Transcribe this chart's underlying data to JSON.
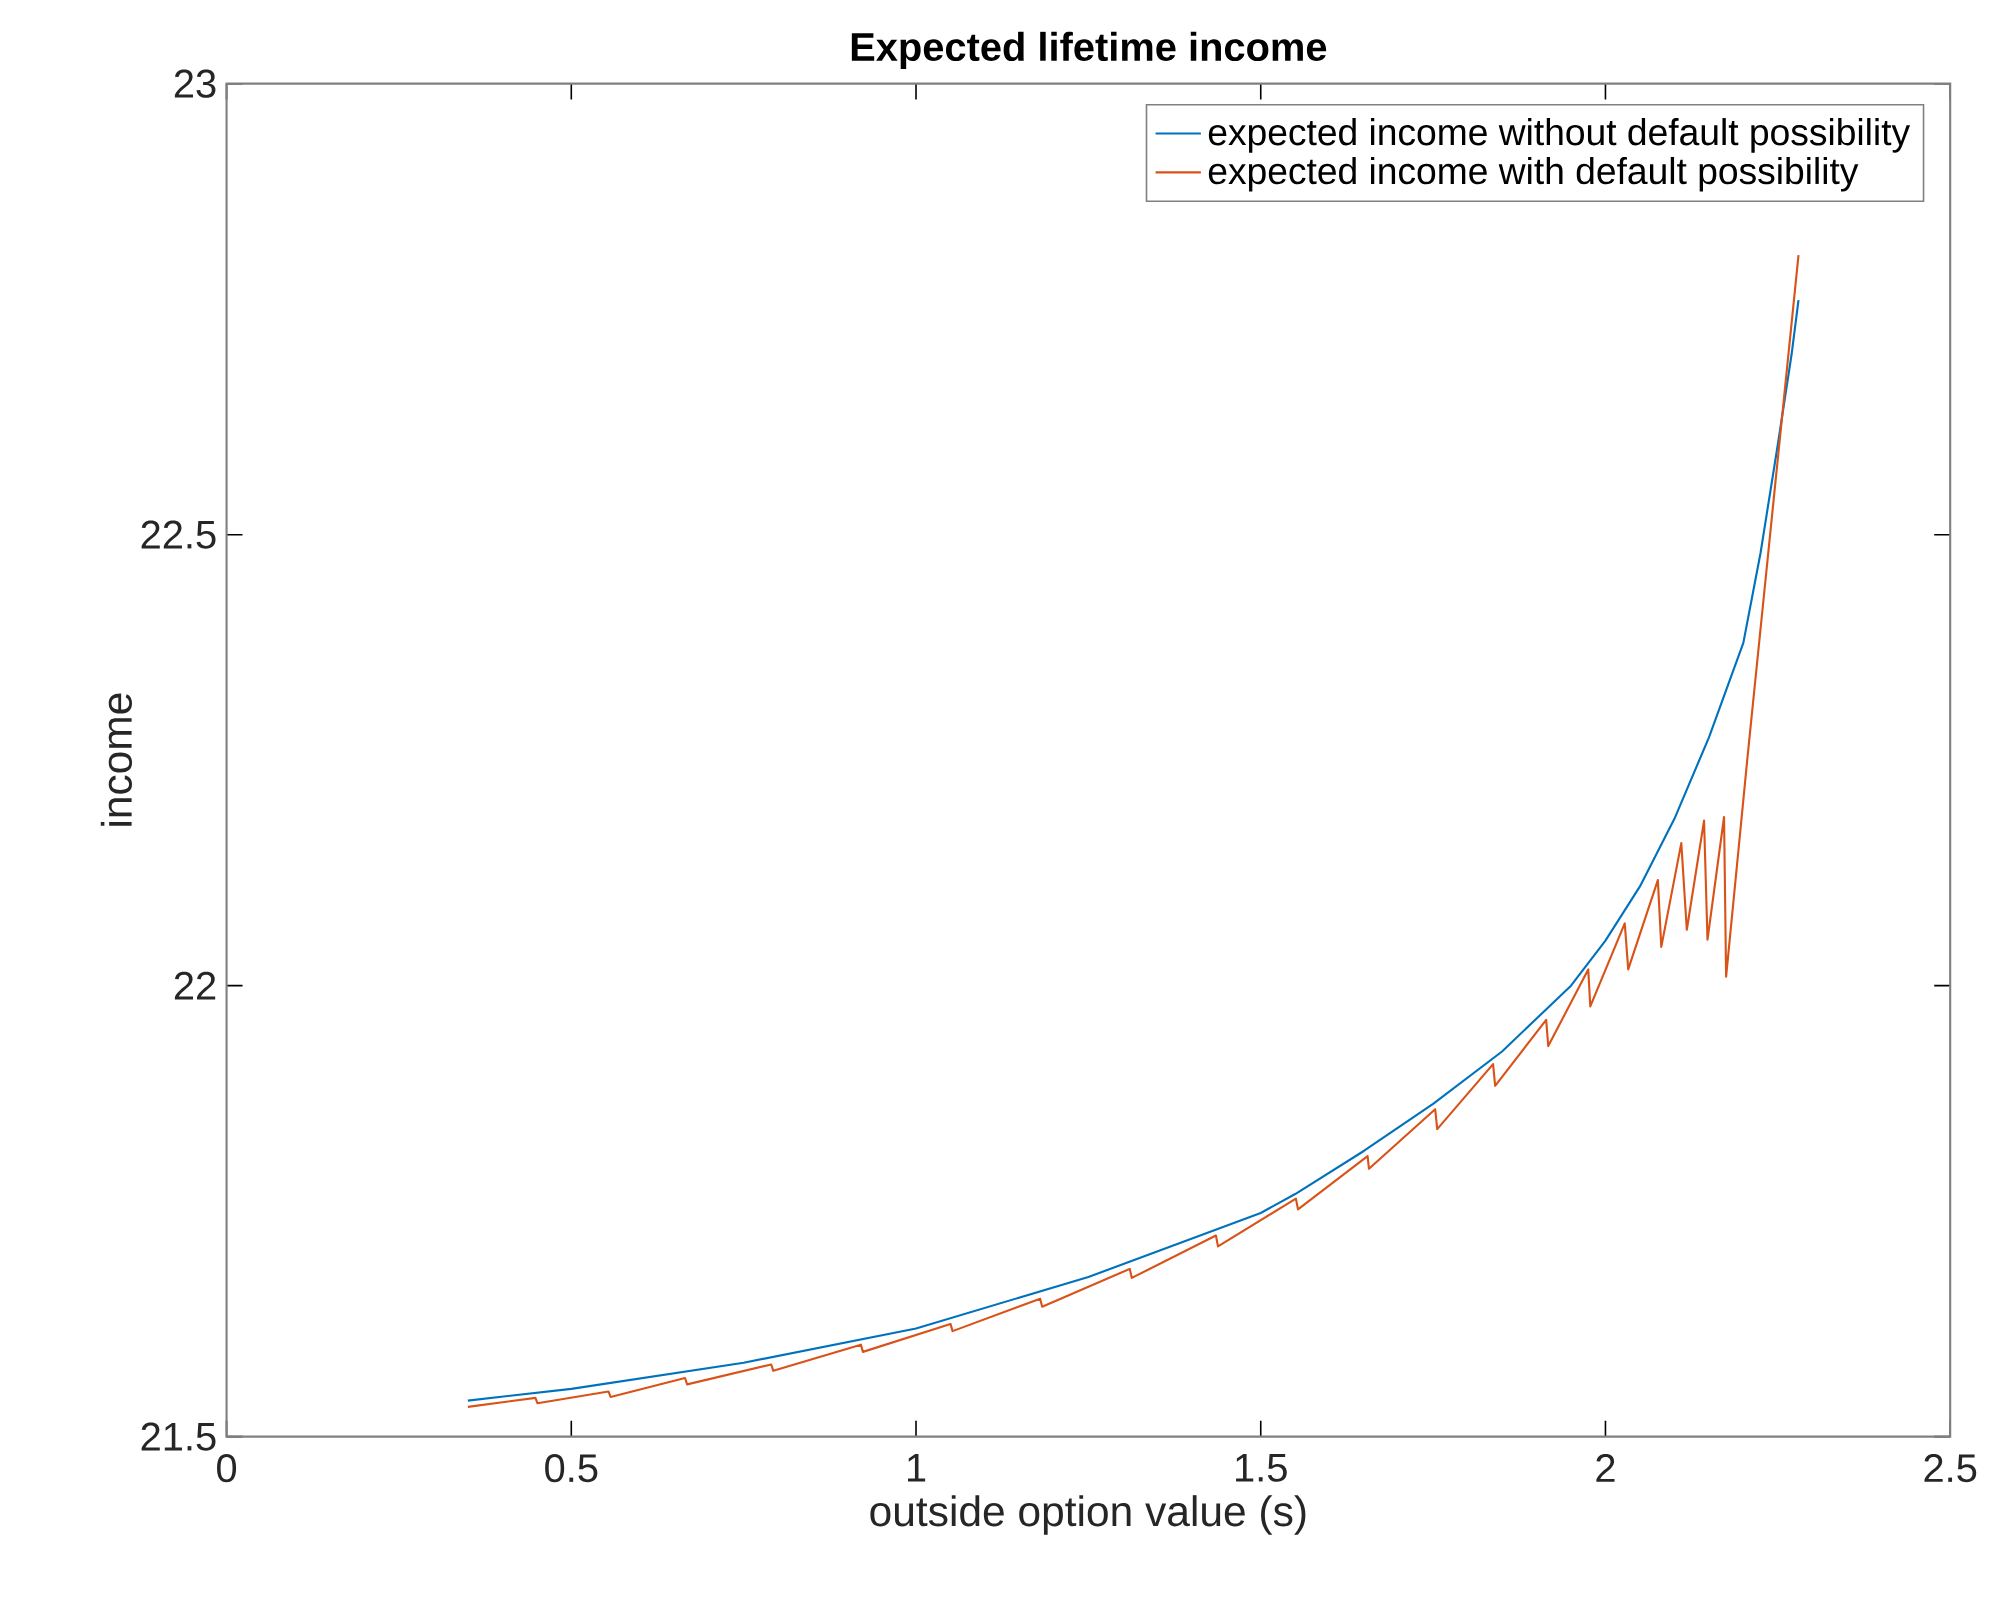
{
  "chart_data": {
    "type": "line",
    "title": "Expected lifetime income",
    "xlabel": "outside option value (s)",
    "ylabel": "income",
    "xlim": [
      0,
      2.5
    ],
    "ylim": [
      21.5,
      23
    ],
    "xticks": [
      0,
      0.5,
      1,
      1.5,
      2,
      2.5
    ],
    "yticks": [
      21.5,
      22,
      22.5,
      23
    ],
    "grid": false,
    "legend": "top right",
    "marker": "none",
    "line_style": "solid",
    "series": [
      {
        "name": "expected income without default possibility",
        "color": "#0072bd",
        "x": [
          0.35,
          0.5,
          0.75,
          1.0,
          1.25,
          1.5,
          1.55,
          1.65,
          1.75,
          1.85,
          1.95,
          2.0,
          2.05,
          2.1,
          2.15,
          2.2,
          2.225,
          2.25,
          2.27,
          2.28
        ],
        "values": [
          21.54,
          21.553,
          21.582,
          21.62,
          21.677,
          21.748,
          21.769,
          21.817,
          21.869,
          21.927,
          22.0,
          22.05,
          22.11,
          22.185,
          22.275,
          22.38,
          22.48,
          22.6,
          22.7,
          22.76
        ]
      },
      {
        "name": "expected income with default possibility",
        "color": "#d95319",
        "x": [
          0.35,
          0.448,
          0.451,
          0.554,
          0.557,
          0.665,
          0.668,
          0.79,
          0.793,
          0.92,
          0.923,
          1.05,
          1.053,
          1.18,
          1.183,
          1.31,
          1.313,
          1.435,
          1.438,
          1.551,
          1.554,
          1.655,
          1.657,
          1.753,
          1.756,
          1.837,
          1.84,
          1.914,
          1.917,
          1.975,
          1.978,
          2.028,
          2.033,
          2.076,
          2.081,
          2.11,
          2.118,
          2.143,
          2.148,
          2.172,
          2.175,
          2.206,
          2.28
        ],
        "values": [
          21.533,
          21.543,
          21.537,
          21.55,
          21.544,
          21.565,
          21.558,
          21.58,
          21.573,
          21.602,
          21.594,
          21.625,
          21.617,
          21.653,
          21.644,
          21.686,
          21.676,
          21.723,
          21.711,
          21.764,
          21.752,
          21.811,
          21.797,
          21.863,
          21.841,
          21.913,
          21.889,
          21.962,
          21.933,
          22.018,
          21.977,
          22.069,
          22.018,
          22.117,
          22.043,
          22.158,
          22.062,
          22.183,
          22.051,
          22.187,
          22.01,
          22.253,
          22.81
        ]
      }
    ]
  }
}
